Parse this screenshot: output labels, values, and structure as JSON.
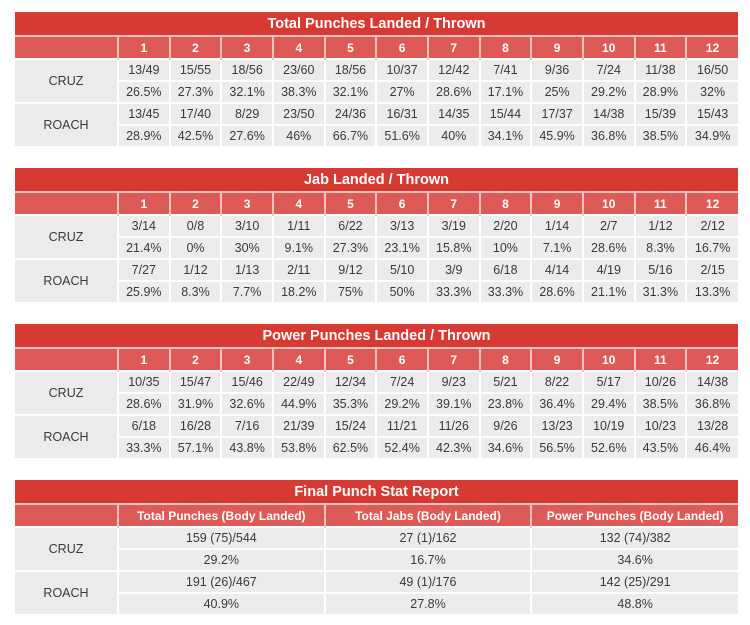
{
  "tables": {
    "total": {
      "title": "Total Punches Landed / Thrown",
      "rounds": [
        "1",
        "2",
        "3",
        "4",
        "5",
        "6",
        "7",
        "8",
        "9",
        "10",
        "11",
        "12"
      ],
      "cruz": {
        "name": "CRUZ",
        "landed_thrown": [
          "13/49",
          "15/55",
          "18/56",
          "23/60",
          "18/56",
          "10/37",
          "12/42",
          "7/41",
          "9/36",
          "7/24",
          "11/38",
          "16/50"
        ],
        "pct": [
          "26.5%",
          "27.3%",
          "32.1%",
          "38.3%",
          "32.1%",
          "27%",
          "28.6%",
          "17.1%",
          "25%",
          "29.2%",
          "28.9%",
          "32%"
        ]
      },
      "roach": {
        "name": "ROACH",
        "landed_thrown": [
          "13/45",
          "17/40",
          "8/29",
          "23/50",
          "24/36",
          "16/31",
          "14/35",
          "15/44",
          "17/37",
          "14/38",
          "15/39",
          "15/43"
        ],
        "pct": [
          "28.9%",
          "42.5%",
          "27.6%",
          "46%",
          "66.7%",
          "51.6%",
          "40%",
          "34.1%",
          "45.9%",
          "36.8%",
          "38.5%",
          "34.9%"
        ]
      }
    },
    "jab": {
      "title": "Jab Landed / Thrown",
      "rounds": [
        "1",
        "2",
        "3",
        "4",
        "5",
        "6",
        "7",
        "8",
        "9",
        "10",
        "11",
        "12"
      ],
      "cruz": {
        "name": "CRUZ",
        "landed_thrown": [
          "3/14",
          "0/8",
          "3/10",
          "1/11",
          "6/22",
          "3/13",
          "3/19",
          "2/20",
          "1/14",
          "2/7",
          "1/12",
          "2/12"
        ],
        "pct": [
          "21.4%",
          "0%",
          "30%",
          "9.1%",
          "27.3%",
          "23.1%",
          "15.8%",
          "10%",
          "7.1%",
          "28.6%",
          "8.3%",
          "16.7%"
        ]
      },
      "roach": {
        "name": "ROACH",
        "landed_thrown": [
          "7/27",
          "1/12",
          "1/13",
          "2/11",
          "9/12",
          "5/10",
          "3/9",
          "6/18",
          "4/14",
          "4/19",
          "5/16",
          "2/15"
        ],
        "pct": [
          "25.9%",
          "8.3%",
          "7.7%",
          "18.2%",
          "75%",
          "50%",
          "33.3%",
          "33.3%",
          "28.6%",
          "21.1%",
          "31.3%",
          "13.3%"
        ]
      }
    },
    "power": {
      "title": "Power Punches Landed / Thrown",
      "rounds": [
        "1",
        "2",
        "3",
        "4",
        "5",
        "6",
        "7",
        "8",
        "9",
        "10",
        "11",
        "12"
      ],
      "cruz": {
        "name": "CRUZ",
        "landed_thrown": [
          "10/35",
          "15/47",
          "15/46",
          "22/49",
          "12/34",
          "7/24",
          "9/23",
          "5/21",
          "8/22",
          "5/17",
          "10/26",
          "14/38"
        ],
        "pct": [
          "28.6%",
          "31.9%",
          "32.6%",
          "44.9%",
          "35.3%",
          "29.2%",
          "39.1%",
          "23.8%",
          "36.4%",
          "29.4%",
          "38.5%",
          "36.8%"
        ]
      },
      "roach": {
        "name": "ROACH",
        "landed_thrown": [
          "6/18",
          "16/28",
          "7/16",
          "21/39",
          "15/24",
          "11/21",
          "11/26",
          "9/26",
          "13/23",
          "10/19",
          "10/23",
          "13/28"
        ],
        "pct": [
          "33.3%",
          "57.1%",
          "43.8%",
          "53.8%",
          "62.5%",
          "52.4%",
          "42.3%",
          "34.6%",
          "56.5%",
          "52.6%",
          "43.5%",
          "46.4%"
        ]
      }
    },
    "final": {
      "title": "Final Punch Stat Report",
      "columns": [
        "Total Punches (Body Landed)",
        "Total Jabs (Body Landed)",
        "Power Punches (Body Landed)"
      ],
      "cruz": {
        "name": "CRUZ",
        "values": [
          "159 (75)/544",
          "27 (1)/162",
          "132 (74)/382"
        ],
        "pct": [
          "29.2%",
          "16.7%",
          "34.6%"
        ]
      },
      "roach": {
        "name": "ROACH",
        "values": [
          "191 (26)/467",
          "49 (1)/176",
          "142 (25)/291"
        ],
        "pct": [
          "40.9%",
          "27.8%",
          "48.8%"
        ]
      }
    }
  },
  "colors": {
    "title_bar": "#d63a32",
    "header_row": "#dd5a56",
    "cell_bg": "#ebebeb",
    "text": "#3a3a3a"
  }
}
